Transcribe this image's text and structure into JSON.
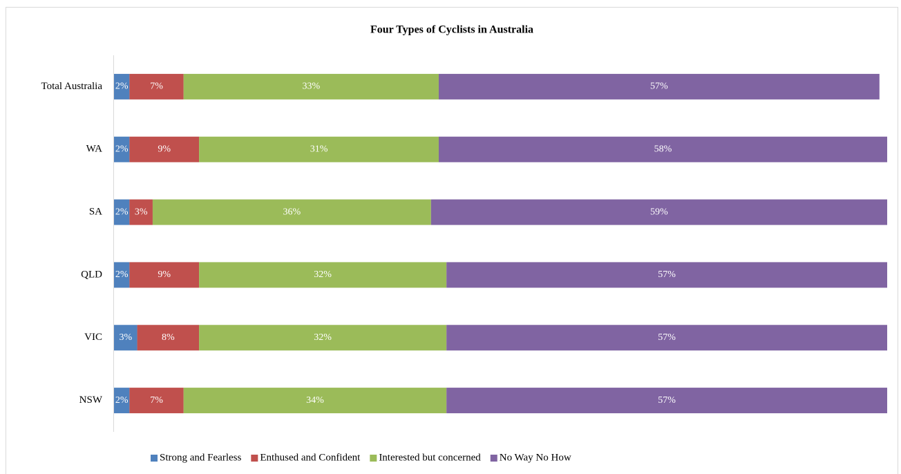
{
  "chart_data": {
    "type": "stacked_bar_horizontal",
    "title": "Four Types of Cyclists in Australia",
    "categories": [
      "Total Australia",
      "WA",
      "SA",
      "QLD",
      "VIC",
      "NSW"
    ],
    "series": [
      {
        "name": "Strong and Fearless",
        "color": "#4f81bd",
        "values": [
          2,
          2,
          2,
          2,
          3,
          2
        ],
        "value_labels": [
          "2%",
          "2%",
          "2%",
          "2%",
          "3%",
          "2%"
        ]
      },
      {
        "name": "Enthused and Confident",
        "color": "#c0504d",
        "values": [
          7,
          9,
          3,
          9,
          8,
          7
        ],
        "value_labels": [
          "7%",
          "9%",
          "3%",
          "9%",
          "8%",
          "7%"
        ]
      },
      {
        "name": "Interested but concerned",
        "color": "#9bbb59",
        "values": [
          33,
          31,
          36,
          32,
          32,
          34
        ],
        "value_labels": [
          "33%",
          "31%",
          "36%",
          "32%",
          "32%",
          "34%"
        ]
      },
      {
        "name": "No Way No How",
        "color": "#8064a2",
        "values": [
          57,
          58,
          59,
          57,
          57,
          57
        ],
        "value_labels": [
          "57%",
          "58%",
          "59%",
          "57%",
          "57%",
          "57%"
        ]
      }
    ],
    "legend": "bottom"
  }
}
